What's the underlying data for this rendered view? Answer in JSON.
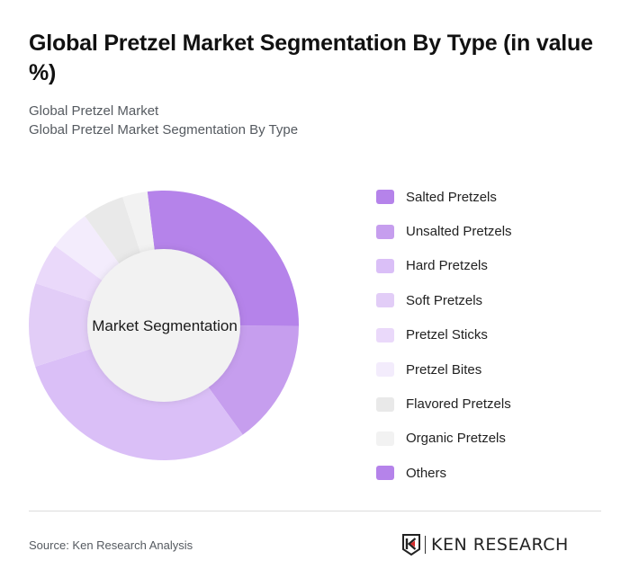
{
  "header": {
    "title": "Global Pretzel Market Segmentation By Type (in value %)",
    "subtitle_line1": "Global Pretzel Market",
    "subtitle_line2": "Global Pretzel Market Segmentation By Type"
  },
  "chart": {
    "center_label": "Market Segmentation"
  },
  "legend": [
    {
      "label": "Salted Pretzels",
      "color": "#b583ea"
    },
    {
      "label": "Unsalted Pretzels",
      "color": "#c69eee"
    },
    {
      "label": "Hard Pretzels",
      "color": "#dabff7"
    },
    {
      "label": "Soft Pretzels",
      "color": "#e2cdf7"
    },
    {
      "label": "Pretzel Sticks",
      "color": "#ead9fa"
    },
    {
      "label": "Pretzel Bites",
      "color": "#f3ecfc"
    },
    {
      "label": "Flavored Pretzels",
      "color": "#e9e9e9"
    },
    {
      "label": "Organic Pretzels",
      "color": "#f2f2f2"
    },
    {
      "label": "Others",
      "color": "#b583ea"
    }
  ],
  "footer": {
    "source": "Source: Ken Research Analysis",
    "logo_text": "KEN RESEARCH"
  },
  "chart_data": {
    "type": "pie",
    "title": "Global Pretzel Market Segmentation By Type (in value %)",
    "subtitle": "Global Pretzel Market Segmentation By Type",
    "center_label": "Market Segmentation",
    "categories": [
      "Salted Pretzels",
      "Unsalted Pretzels",
      "Hard Pretzels",
      "Soft Pretzels",
      "Pretzel Sticks",
      "Pretzel Bites",
      "Flavored Pretzels",
      "Organic Pretzels",
      "Others"
    ],
    "values": [
      27,
      15,
      30,
      10,
      5,
      5,
      5,
      3,
      0
    ],
    "colors": [
      "#b583ea",
      "#c69eee",
      "#dabff7",
      "#e2cdf7",
      "#ead9fa",
      "#f3ecfc",
      "#e9e9e9",
      "#f2f2f2",
      "#b583ea"
    ],
    "start_angle_deg": -7,
    "donut": true,
    "legend_position": "right"
  }
}
